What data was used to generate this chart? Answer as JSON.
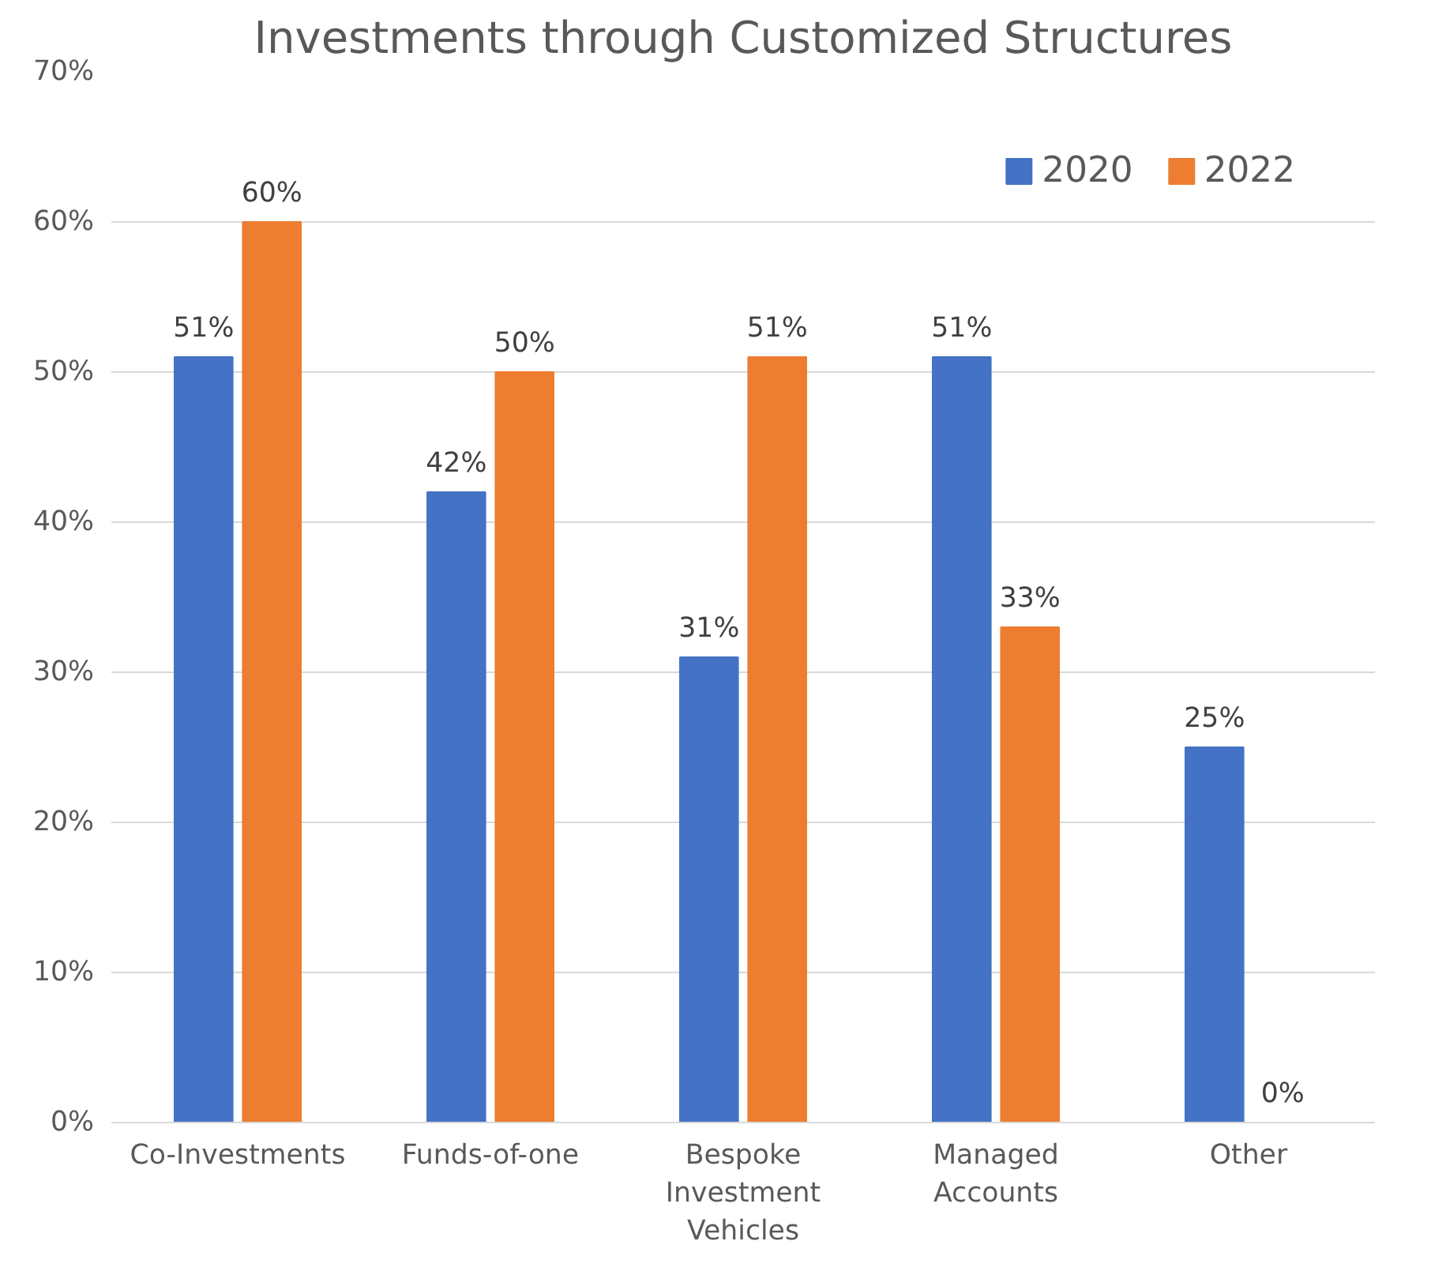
{
  "chart_data": {
    "type": "bar",
    "title": "Investments through Customized Structures",
    "categories": [
      "Co-Investments",
      "Funds-of-one",
      "Bespoke Investment Vehicles",
      "Managed Accounts",
      "Other"
    ],
    "series": [
      {
        "name": "2020",
        "color": "#4472c4",
        "values": [
          51,
          42,
          31,
          51,
          25
        ],
        "value_labels": [
          "51%",
          "42%",
          "31%",
          "51%",
          "25%"
        ]
      },
      {
        "name": "2022",
        "color": "#ed7d31",
        "values": [
          60,
          50,
          51,
          33,
          0
        ],
        "value_labels": [
          "60%",
          "50%",
          "51%",
          "33%",
          "0%"
        ]
      }
    ],
    "ylim": [
      0,
      70
    ],
    "yticks": [
      {
        "value": 0,
        "label": "0%"
      },
      {
        "value": 10,
        "label": "10%"
      },
      {
        "value": 20,
        "label": "20%"
      },
      {
        "value": 30,
        "label": "30%"
      },
      {
        "value": 40,
        "label": "40%"
      },
      {
        "value": 50,
        "label": "50%"
      },
      {
        "value": 60,
        "label": "60%"
      },
      {
        "value": 70,
        "label": "70%"
      }
    ],
    "grid": "y",
    "legend": "top right"
  }
}
